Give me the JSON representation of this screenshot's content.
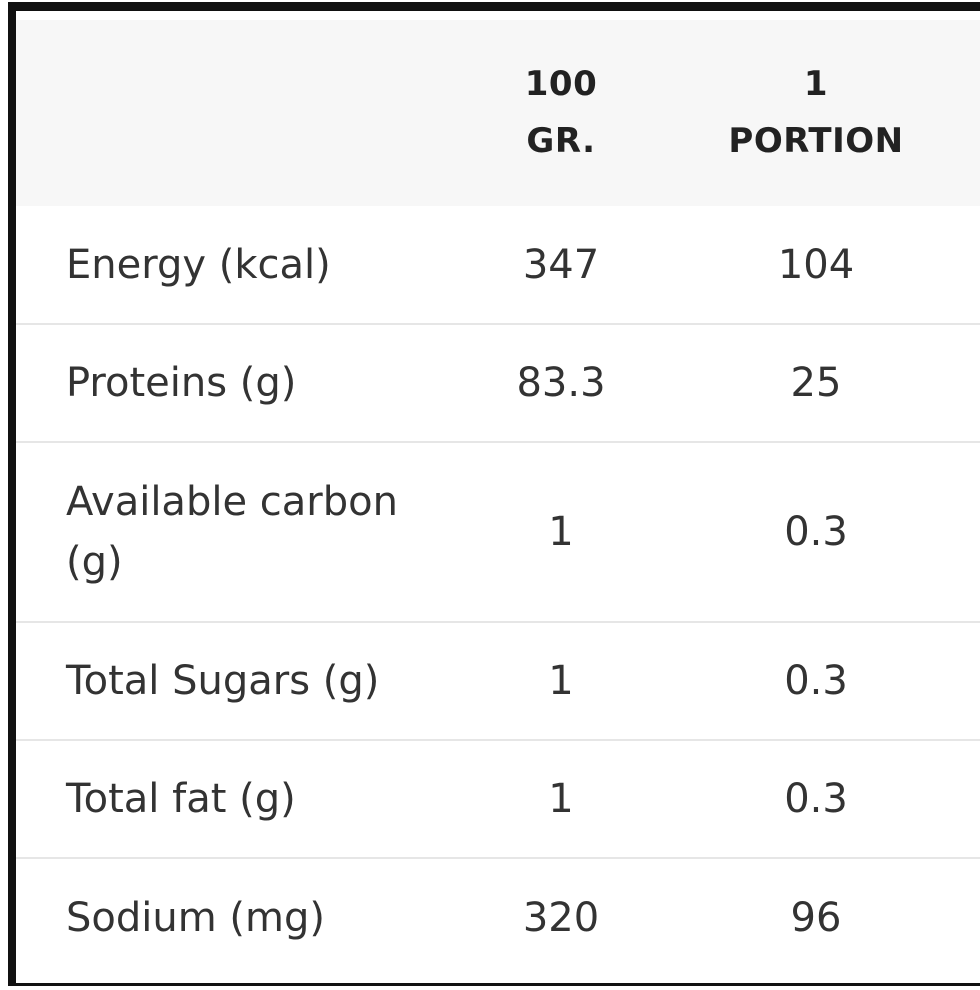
{
  "header": {
    "col_100g": "100\nGR.",
    "col_portion": "1\nPORTION"
  },
  "rows": [
    {
      "label": "Energy (kcal)",
      "per_100g": "347",
      "per_portion": "104"
    },
    {
      "label": "Proteins (g)",
      "per_100g": "83.3",
      "per_portion": "25"
    },
    {
      "label": "Available carbon (g)",
      "per_100g": "1",
      "per_portion": "0.3"
    },
    {
      "label": "Total Sugars (g)",
      "per_100g": "1",
      "per_portion": "0.3"
    },
    {
      "label": "Total fat (g)",
      "per_100g": "1",
      "per_portion": "0.3"
    },
    {
      "label": "Sodium (mg)",
      "per_100g": "320",
      "per_portion": "96"
    }
  ]
}
